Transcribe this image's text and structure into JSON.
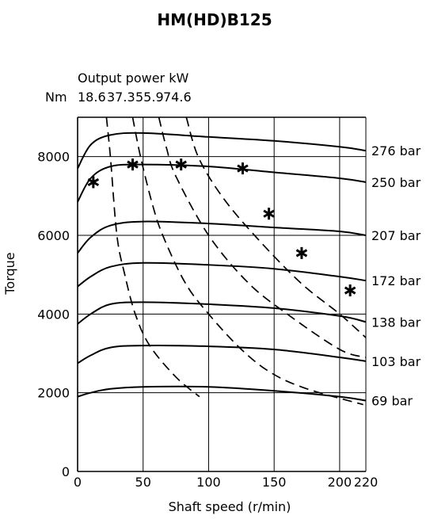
{
  "chart_data": {
    "type": "line",
    "title": "HM(HD)B125",
    "xlabel": "Shaft speed (r/min)",
    "ylabel": "Torque",
    "xlim": [
      0,
      220
    ],
    "ylim": [
      0,
      9000
    ],
    "x_ticks": [
      0,
      50,
      100,
      150,
      200,
      220
    ],
    "x_tick_labels": [
      "0",
      "50",
      "100",
      "150",
      "200",
      "220"
    ],
    "y_ticks": [
      0,
      2000,
      4000,
      6000,
      8000
    ],
    "y_tick_labels": [
      "0",
      "2000",
      "4000",
      "6000",
      "8000"
    ],
    "top_axis": {
      "label": "Output power kW",
      "unit_label": "Nm",
      "ticks": [
        "18.6",
        "37.3",
        "55.9",
        "74.6"
      ]
    },
    "grid": true,
    "pressure_curves": [
      {
        "name": "276 bar",
        "points": [
          [
            0,
            7700
          ],
          [
            10,
            8300
          ],
          [
            25,
            8550
          ],
          [
            50,
            8600
          ],
          [
            100,
            8500
          ],
          [
            150,
            8400
          ],
          [
            200,
            8250
          ],
          [
            220,
            8150
          ]
        ]
      },
      {
        "name": "250 bar",
        "points": [
          [
            0,
            6850
          ],
          [
            10,
            7450
          ],
          [
            25,
            7750
          ],
          [
            50,
            7800
          ],
          [
            100,
            7750
          ],
          [
            150,
            7600
          ],
          [
            200,
            7450
          ],
          [
            220,
            7350
          ]
        ]
      },
      {
        "name": "207 bar",
        "points": [
          [
            0,
            5550
          ],
          [
            10,
            5950
          ],
          [
            25,
            6250
          ],
          [
            50,
            6350
          ],
          [
            100,
            6300
          ],
          [
            150,
            6200
          ],
          [
            200,
            6100
          ],
          [
            220,
            6000
          ]
        ]
      },
      {
        "name": "172 bar",
        "points": [
          [
            0,
            4700
          ],
          [
            10,
            4950
          ],
          [
            25,
            5200
          ],
          [
            50,
            5300
          ],
          [
            100,
            5250
          ],
          [
            150,
            5150
          ],
          [
            200,
            4950
          ],
          [
            220,
            4850
          ]
        ]
      },
      {
        "name": "138 bar",
        "points": [
          [
            0,
            3750
          ],
          [
            10,
            4000
          ],
          [
            25,
            4250
          ],
          [
            50,
            4300
          ],
          [
            100,
            4250
          ],
          [
            150,
            4150
          ],
          [
            200,
            3950
          ],
          [
            220,
            3800
          ]
        ]
      },
      {
        "name": "103 bar",
        "points": [
          [
            0,
            2750
          ],
          [
            10,
            2950
          ],
          [
            25,
            3150
          ],
          [
            50,
            3200
          ],
          [
            100,
            3180
          ],
          [
            150,
            3100
          ],
          [
            200,
            2900
          ],
          [
            220,
            2800
          ]
        ]
      },
      {
        "name": "69 bar",
        "points": [
          [
            0,
            1900
          ],
          [
            10,
            2000
          ],
          [
            25,
            2100
          ],
          [
            50,
            2150
          ],
          [
            100,
            2150
          ],
          [
            150,
            2050
          ],
          [
            200,
            1900
          ],
          [
            220,
            1800
          ]
        ]
      }
    ],
    "power_curves": [
      {
        "name": "18.6",
        "points": [
          [
            22,
            9000
          ],
          [
            25,
            8000
          ],
          [
            30,
            6000
          ],
          [
            36,
            5000
          ],
          [
            44,
            4000
          ],
          [
            55,
            3200
          ],
          [
            75,
            2400
          ],
          [
            93,
            1900
          ]
        ]
      },
      {
        "name": "37.3",
        "points": [
          [
            42,
            9000
          ],
          [
            48,
            8000
          ],
          [
            57,
            6800
          ],
          [
            65,
            6000
          ],
          [
            82,
            4800
          ],
          [
            100,
            4000
          ],
          [
            125,
            3100
          ],
          [
            148,
            2500
          ],
          [
            175,
            2100
          ],
          [
            218,
            1700
          ]
        ]
      },
      {
        "name": "55.9",
        "points": [
          [
            62,
            9000
          ],
          [
            68,
            8200
          ],
          [
            75,
            7500
          ],
          [
            100,
            6000
          ],
          [
            130,
            4800
          ],
          [
            160,
            4000
          ],
          [
            200,
            3100
          ],
          [
            220,
            2900
          ]
        ]
      },
      {
        "name": "74.6",
        "points": [
          [
            83,
            9000
          ],
          [
            92,
            8000
          ],
          [
            110,
            7000
          ],
          [
            135,
            6000
          ],
          [
            170,
            4800
          ],
          [
            200,
            4000
          ],
          [
            220,
            3400
          ]
        ]
      }
    ],
    "markers": {
      "style": "star",
      "points": [
        [
          12,
          7350
        ],
        [
          42,
          7800
        ],
        [
          79,
          7800
        ],
        [
          126,
          7700
        ],
        [
          146,
          6550
        ],
        [
          171,
          5550
        ],
        [
          208,
          4600
        ]
      ]
    }
  }
}
